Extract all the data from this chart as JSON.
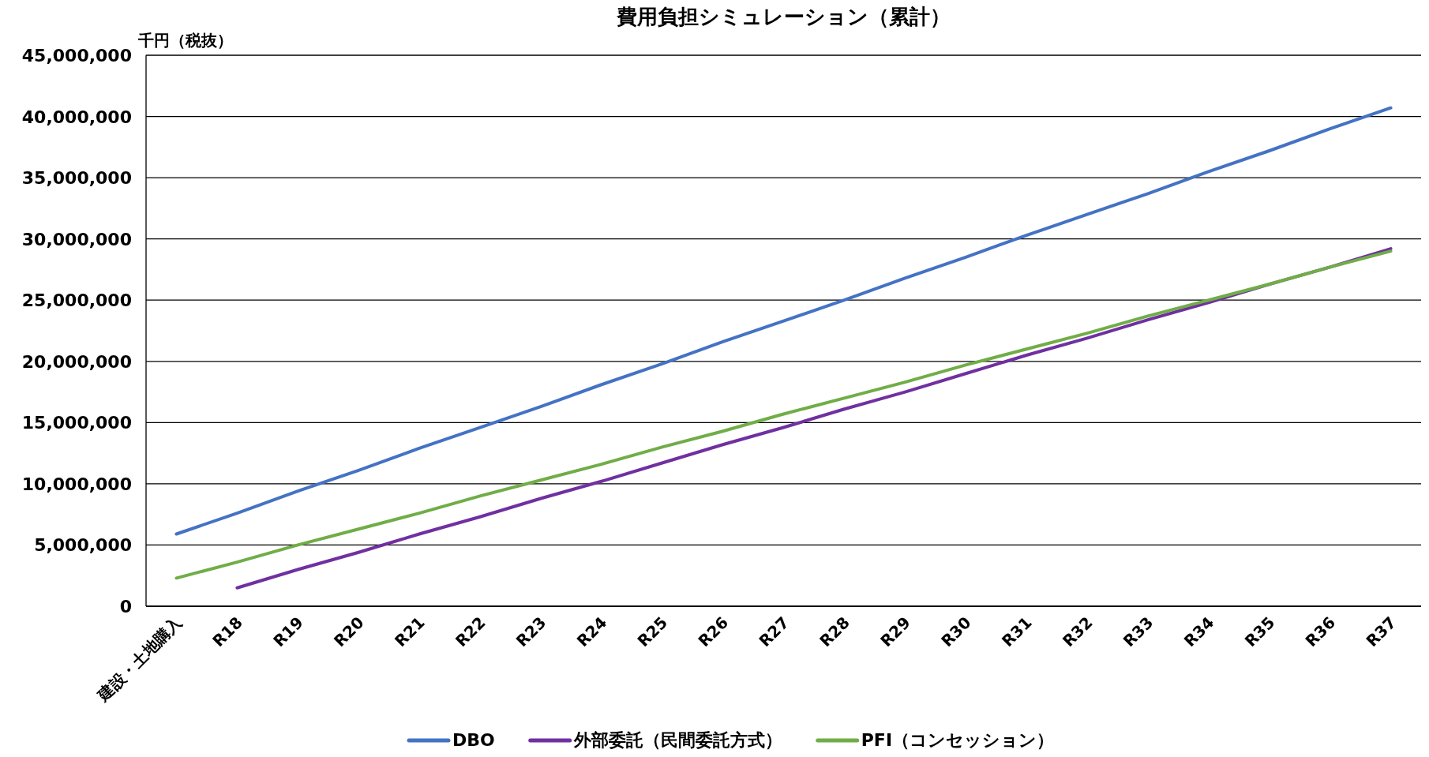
{
  "chart_data": {
    "type": "line",
    "title": "費用負担シミュレーション（累計）",
    "ylabel": "千円（税抜）",
    "categories": [
      "建設・土地購入",
      "R18",
      "R19",
      "R20",
      "R21",
      "R22",
      "R23",
      "R24",
      "R25",
      "R26",
      "R27",
      "R28",
      "R29",
      "R30",
      "R31",
      "R32",
      "R33",
      "R34",
      "R35",
      "R36",
      "R37"
    ],
    "series": [
      {
        "name": "DBO",
        "color": "#4472c4",
        "values": [
          5900000,
          7600000,
          9400000,
          11100000,
          12900000,
          14600000,
          16300000,
          18100000,
          19800000,
          21600000,
          23300000,
          25000000,
          26800000,
          28500000,
          30300000,
          32000000,
          33700000,
          35500000,
          37200000,
          39000000,
          40700000
        ]
      },
      {
        "name": "外部委託（民間委託方式）",
        "color": "#7030a0",
        "values": [
          null,
          1500000,
          3000000,
          4400000,
          5900000,
          7300000,
          8800000,
          10200000,
          11700000,
          13200000,
          14600000,
          16100000,
          17500000,
          19000000,
          20500000,
          21900000,
          23400000,
          24800000,
          26300000,
          27700000,
          29200000
        ]
      },
      {
        "name": "PFI（コンセッション）",
        "color": "#70ad47",
        "values": [
          2300000,
          3600000,
          5000000,
          6300000,
          7600000,
          9000000,
          10300000,
          11600000,
          13000000,
          14300000,
          15700000,
          17000000,
          18300000,
          19700000,
          21000000,
          22300000,
          23700000,
          25000000,
          26300000,
          27700000,
          29000000
        ]
      }
    ],
    "ylim": [
      0,
      45000000
    ],
    "yticks": [
      0,
      {
        "value": 5000000,
        "label": "5,000,000"
      },
      {
        "value": 10000000,
        "label": "10,000,000"
      },
      {
        "value": 15000000,
        "label": "15,000,000"
      },
      {
        "value": 20000000,
        "label": "20,000,000"
      },
      {
        "value": 25000000,
        "label": "25,000,000"
      },
      {
        "value": 30000000,
        "label": "30,000,000"
      },
      {
        "value": 35000000,
        "label": "35,000,000"
      },
      {
        "value": 40000000,
        "label": "40,000,000"
      },
      {
        "value": 45000000,
        "label": "45,000,000"
      }
    ],
    "grid": "y",
    "legend": "bottom",
    "marker": "none",
    "line_style": "solid"
  }
}
